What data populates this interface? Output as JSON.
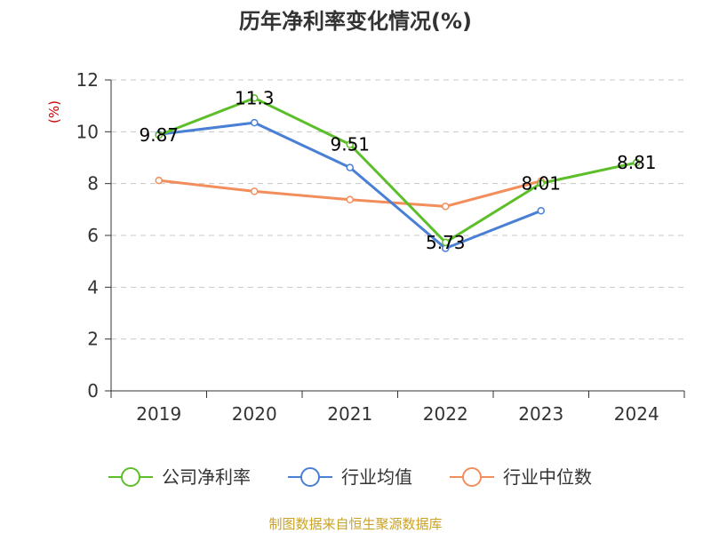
{
  "chart_data": {
    "type": "line",
    "title": "历年净利率变化情况(%)",
    "ylabel": "(%)",
    "xlabel": "",
    "categories": [
      "2019",
      "2020",
      "2021",
      "2022",
      "2023",
      "2024"
    ],
    "ylim": [
      0,
      12
    ],
    "yticks": [
      "0",
      "2",
      "4",
      "6",
      "8",
      "10",
      "12"
    ],
    "grid": true,
    "legend_position": "bottom",
    "series": [
      {
        "name": "公司净利率",
        "color": "#5cbf2a",
        "values": [
          9.87,
          11.3,
          9.51,
          5.73,
          8.01,
          8.81
        ],
        "labels": [
          "9.87",
          "11.3",
          "9.51",
          "5.73",
          "8.01",
          "8.81"
        ]
      },
      {
        "name": "行业均值",
        "color": "#4a7fd6",
        "values": [
          9.9,
          10.35,
          8.62,
          5.5,
          6.95,
          null
        ]
      },
      {
        "name": "行业中位数",
        "color": "#f28e5b",
        "values": [
          8.12,
          7.7,
          7.38,
          7.12,
          8.1,
          null
        ]
      }
    ]
  },
  "footer": {
    "source": "制图数据来自恒生聚源数据库"
  }
}
